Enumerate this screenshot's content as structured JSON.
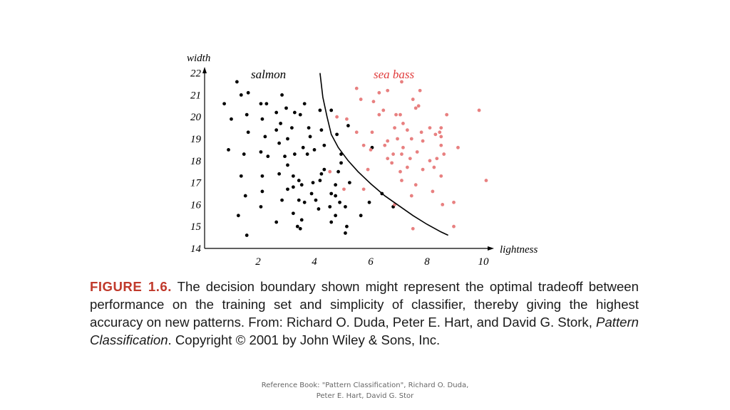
{
  "chart_data": {
    "type": "scatter",
    "xlabel": "lightness",
    "ylabel": "width",
    "xlim": [
      0.4,
      10.1
    ],
    "ylim": [
      14,
      22.3
    ],
    "x_ticks": [
      2,
      4,
      6,
      8,
      10
    ],
    "y_ticks": [
      14,
      15,
      16,
      17,
      18,
      19,
      20,
      21,
      22
    ],
    "series": [
      {
        "name": "salmon",
        "color": "#000000",
        "points": [
          [
            1.25,
            21.6
          ],
          [
            1.4,
            21.0
          ],
          [
            1.65,
            21.1
          ],
          [
            0.8,
            20.6
          ],
          [
            1.05,
            19.9
          ],
          [
            1.6,
            20.1
          ],
          [
            1.65,
            19.3
          ],
          [
            0.95,
            18.5
          ],
          [
            1.5,
            18.3
          ],
          [
            1.4,
            17.3
          ],
          [
            1.55,
            16.4
          ],
          [
            1.3,
            15.5
          ],
          [
            1.6,
            14.6
          ],
          [
            2.1,
            20.6
          ],
          [
            2.15,
            19.9
          ],
          [
            2.25,
            19.1
          ],
          [
            2.35,
            18.2
          ],
          [
            2.1,
            18.4
          ],
          [
            2.15,
            17.3
          ],
          [
            2.15,
            16.6
          ],
          [
            2.1,
            15.9
          ],
          [
            2.65,
            20.2
          ],
          [
            2.85,
            21.0
          ],
          [
            2.65,
            19.4
          ],
          [
            2.8,
            19.7
          ],
          [
            3.0,
            20.4
          ],
          [
            3.2,
            19.5
          ],
          [
            3.05,
            19.0
          ],
          [
            2.75,
            18.8
          ],
          [
            2.95,
            18.2
          ],
          [
            3.05,
            17.8
          ],
          [
            2.75,
            17.4
          ],
          [
            3.05,
            16.7
          ],
          [
            2.85,
            16.2
          ],
          [
            2.65,
            15.2
          ],
          [
            3.3,
            20.2
          ],
          [
            3.5,
            20.1
          ],
          [
            3.3,
            18.3
          ],
          [
            3.6,
            18.6
          ],
          [
            3.25,
            17.3
          ],
          [
            3.55,
            16.9
          ],
          [
            3.75,
            18.3
          ],
          [
            3.45,
            17.1
          ],
          [
            3.25,
            16.8
          ],
          [
            3.45,
            16.2
          ],
          [
            3.55,
            15.3
          ],
          [
            3.5,
            14.9
          ],
          [
            3.25,
            15.6
          ],
          [
            3.8,
            19.5
          ],
          [
            3.85,
            19.1
          ],
          [
            4.2,
            20.3
          ],
          [
            4.0,
            18.5
          ],
          [
            4.2,
            17.1
          ],
          [
            3.95,
            17.0
          ],
          [
            3.9,
            16.5
          ],
          [
            3.65,
            16.1
          ],
          [
            3.4,
            15.0
          ],
          [
            4.25,
            19.4
          ],
          [
            4.35,
            18.7
          ],
          [
            4.35,
            17.6
          ],
          [
            4.25,
            17.4
          ],
          [
            4.05,
            16.2
          ],
          [
            4.15,
            15.8
          ],
          [
            4.6,
            16.5
          ],
          [
            4.75,
            16.4
          ],
          [
            4.75,
            16.9
          ],
          [
            4.85,
            17.5
          ],
          [
            4.55,
            15.9
          ],
          [
            4.6,
            15.2
          ],
          [
            4.75,
            15.5
          ],
          [
            4.9,
            16.1
          ],
          [
            5.1,
            15.9
          ],
          [
            5.1,
            14.7
          ],
          [
            5.15,
            15.0
          ],
          [
            4.6,
            20.3
          ],
          [
            4.8,
            19.2
          ],
          [
            5.2,
            19.6
          ],
          [
            5.65,
            15.5
          ],
          [
            5.95,
            16.1
          ],
          [
            6.05,
            18.6
          ],
          [
            6.4,
            16.5
          ],
          [
            6.8,
            15.9
          ],
          [
            3.65,
            20.6
          ],
          [
            2.3,
            20.6
          ],
          [
            5.25,
            17.0
          ],
          [
            4.95,
            17.9
          ],
          [
            4.95,
            18.3
          ]
        ]
      },
      {
        "name": "sea bass",
        "color": "#e88080",
        "points": [
          [
            5.5,
            21.3
          ],
          [
            5.65,
            20.8
          ],
          [
            6.1,
            20.7
          ],
          [
            6.3,
            21.1
          ],
          [
            6.45,
            20.3
          ],
          [
            6.6,
            21.2
          ],
          [
            7.1,
            21.6
          ],
          [
            7.5,
            20.8
          ],
          [
            7.75,
            21.2
          ],
          [
            7.7,
            20.5
          ],
          [
            4.8,
            20.0
          ],
          [
            5.15,
            19.9
          ],
          [
            5.5,
            19.3
          ],
          [
            5.75,
            18.7
          ],
          [
            6.0,
            18.5
          ],
          [
            6.05,
            19.3
          ],
          [
            6.3,
            20.1
          ],
          [
            6.5,
            18.7
          ],
          [
            6.9,
            20.1
          ],
          [
            7.05,
            20.1
          ],
          [
            7.15,
            19.7
          ],
          [
            7.6,
            20.4
          ],
          [
            6.85,
            19.5
          ],
          [
            6.95,
            19.0
          ],
          [
            7.3,
            19.4
          ],
          [
            7.45,
            19.0
          ],
          [
            7.15,
            18.6
          ],
          [
            7.1,
            18.3
          ],
          [
            6.8,
            18.3
          ],
          [
            6.6,
            18.9
          ],
          [
            6.6,
            18.1
          ],
          [
            6.75,
            17.9
          ],
          [
            7.4,
            18.1
          ],
          [
            7.3,
            17.7
          ],
          [
            7.05,
            17.5
          ],
          [
            7.8,
            19.3
          ],
          [
            7.85,
            18.9
          ],
          [
            7.65,
            18.4
          ],
          [
            7.85,
            17.6
          ],
          [
            7.6,
            16.9
          ],
          [
            7.45,
            16.4
          ],
          [
            8.1,
            19.5
          ],
          [
            8.3,
            19.2
          ],
          [
            8.1,
            18.0
          ],
          [
            8.25,
            17.7
          ],
          [
            8.35,
            18.1
          ],
          [
            8.5,
            18.7
          ],
          [
            8.45,
            19.3
          ],
          [
            8.5,
            19.1
          ],
          [
            8.6,
            18.3
          ],
          [
            8.5,
            17.3
          ],
          [
            8.2,
            16.6
          ],
          [
            8.55,
            16.0
          ],
          [
            8.95,
            16.1
          ],
          [
            8.95,
            15.0
          ],
          [
            9.1,
            18.6
          ],
          [
            10.1,
            17.1
          ],
          [
            9.85,
            20.3
          ],
          [
            7.5,
            14.9
          ],
          [
            5.05,
            16.7
          ],
          [
            5.75,
            16.7
          ],
          [
            5.9,
            17.6
          ],
          [
            6.85,
            16.0
          ],
          [
            7.1,
            17.1
          ],
          [
            8.7,
            20.1
          ],
          [
            8.5,
            19.5
          ],
          [
            4.55,
            17.5
          ]
        ]
      }
    ],
    "boundary": [
      [
        4.2,
        22.0
      ],
      [
        4.3,
        20.9
      ],
      [
        4.45,
        20.0
      ],
      [
        4.6,
        19.2
      ],
      [
        4.85,
        18.6
      ],
      [
        5.2,
        18.0
      ],
      [
        5.55,
        17.5
      ],
      [
        6.0,
        16.95
      ],
      [
        6.5,
        16.4
      ],
      [
        7.0,
        15.95
      ],
      [
        7.5,
        15.5
      ],
      [
        8.0,
        15.1
      ],
      [
        8.5,
        14.75
      ],
      [
        8.75,
        14.6
      ]
    ],
    "class_labels": [
      "salmon",
      "sea bass"
    ]
  },
  "caption": {
    "figure_label": "FIGURE 1.6.",
    "text_before_title": " The decision boundary shown might represent the optimal tradeoff between performance on the training set and simplicity of classifier, thereby giving the highest accuracy on new patterns. From: Richard O. Duda, Peter E. Hart, and David G. Stork, ",
    "book_title": "Pattern Classification",
    "text_after_title": ". Copyright © 2001 by John Wiley & Sons, Inc."
  },
  "footer": {
    "line1": "Reference Book: \"Pattern Classification\", Richard O. Duda,",
    "line2": "Peter E. Hart, David G. Stor"
  }
}
